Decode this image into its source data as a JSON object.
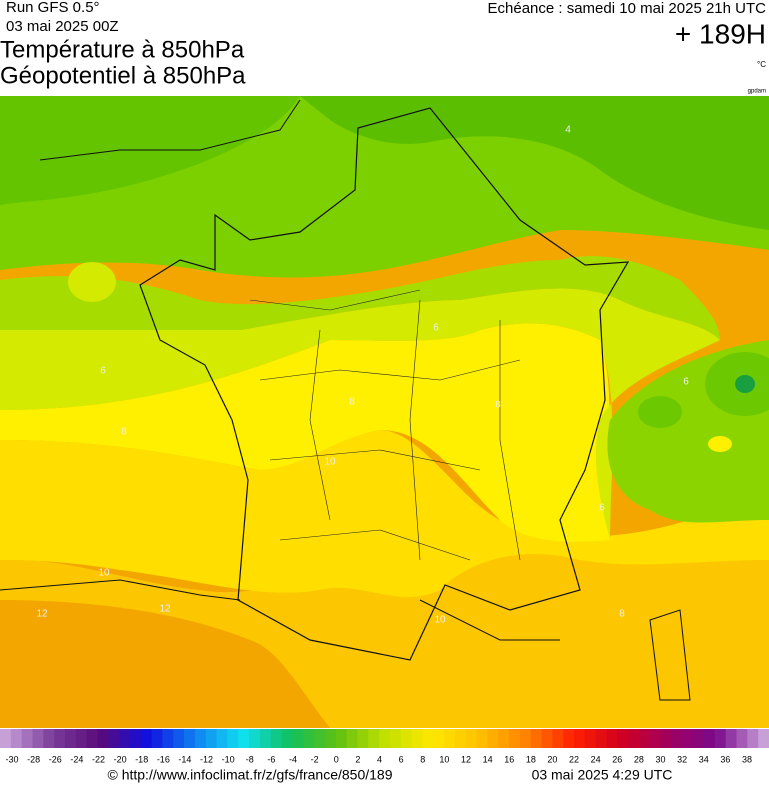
{
  "header": {
    "run": "Run GFS 0.5°",
    "run_date": "03 mai 2025 00Z",
    "title_temperature": "Température à 850hPa",
    "title_geopotential": "Géopotentiel à 850hPa",
    "forecast": "Echéance : samedi 10 mai 2025 21h UTC",
    "lead_time": "+ 189H",
    "unit": "°C",
    "tag": "gpdam"
  },
  "map": {
    "contour_labels": [
      "4",
      "6",
      "6",
      "6",
      "6",
      "8",
      "8",
      "8",
      "8",
      "10",
      "10",
      "10",
      "12",
      "12"
    ]
  },
  "legend": {
    "labels": [
      -30,
      -28,
      -26,
      -24,
      -22,
      -20,
      -18,
      -16,
      -14,
      -12,
      -10,
      -8,
      -6,
      -4,
      -2,
      0,
      2,
      4,
      6,
      8,
      10,
      12,
      14,
      16,
      18,
      20,
      22,
      24,
      26,
      28,
      30,
      32,
      34,
      36,
      38
    ]
  },
  "footer": {
    "source": "© http://www.infoclimat.fr/z/gfs/france/850/189",
    "timestamp": "03 mai 2025  4:29 UTC"
  }
}
